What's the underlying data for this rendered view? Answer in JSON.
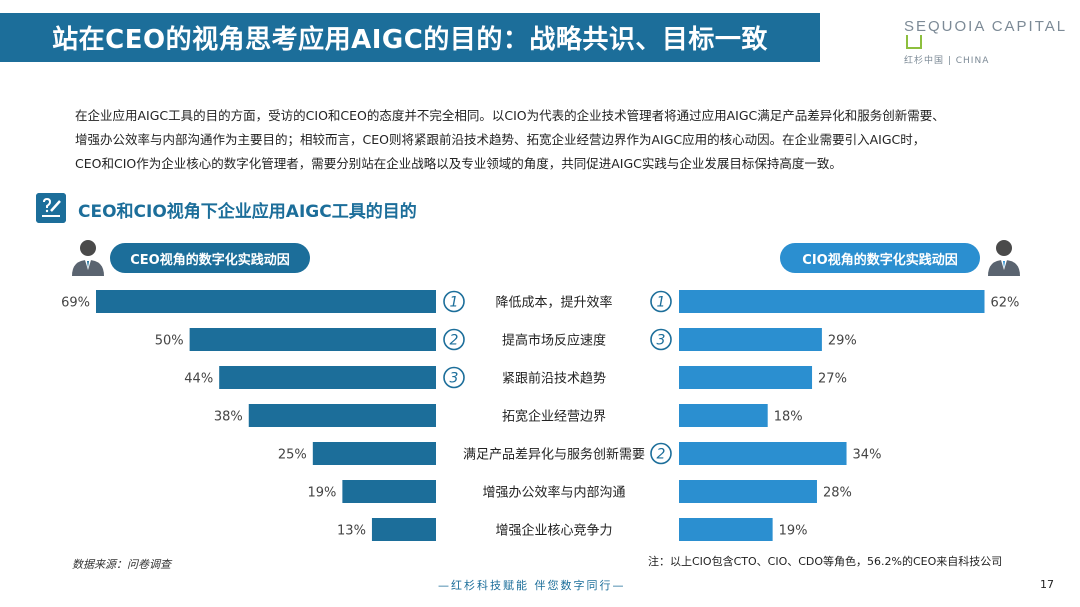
{
  "header": {
    "title": "站在CEO的视角思考应用AIGC的目的：战略共识、目标一致",
    "logo_main": "SEQUOIA CAPITAL",
    "logo_sub": "红杉中国 | CHINA"
  },
  "intro": {
    "line1": "在企业应用AIGC工具的目的方面，受访的CIO和CEO的态度并不完全相同。以CIO为代表的企业技术管理者将通过应用AIGC满足产品差异化和服务创新需要、",
    "line2": "增强办公效率与内部沟通作为主要目的；相较而言，CEO则将紧跟前沿技术趋势、拓宽企业经营边界作为AIGC应用的核心动因。在企业需要引入AIGC时，",
    "line3": "CEO和CIO作为企业核心的数字化管理者，需要分别站在企业战略以及专业领域的角度，共同促进AIGC实践与企业发展目标保持高度一致。"
  },
  "section": {
    "title": "CEO和CIO视角下企业应用AIGC工具的目的"
  },
  "pills": {
    "ceo": "CEO视角的数字化实践动因",
    "cio": "CIO视角的数字化实践动因"
  },
  "colors": {
    "ceo": "#1c6e9a",
    "cio": "#2b8fd0",
    "title_bar": "#1c6e9a"
  },
  "chart_data": {
    "type": "bar",
    "categories": [
      "降低成本，提升效率",
      "提高市场反应速度",
      "紧跟前沿技术趋势",
      "拓宽企业经营边界",
      "满足产品差异化与服务创新需要",
      "增强办公效率与内部沟通",
      "增强企业核心竞争力"
    ],
    "series": [
      {
        "name": "CEO视角的数字化实践动因",
        "values": [
          69,
          50,
          44,
          38,
          25,
          19,
          13
        ],
        "ranks": [
          "1",
          "2",
          "3",
          "",
          "",
          "",
          ""
        ]
      },
      {
        "name": "CIO视角的数字化实践动因",
        "values": [
          62,
          29,
          27,
          18,
          34,
          28,
          19
        ],
        "ranks": [
          "1",
          "3",
          "",
          "",
          "2",
          "",
          ""
        ]
      }
    ],
    "unit": "%",
    "xlim": [
      0,
      70
    ]
  },
  "footer": {
    "source": "数据来源：问卷调查",
    "note": "注：以上CIO包含CTO、CIO、CDO等角色，56.2%的CEO来自科技公司",
    "slogan": "—红杉科技赋能  伴您数字同行—",
    "page": "17"
  }
}
